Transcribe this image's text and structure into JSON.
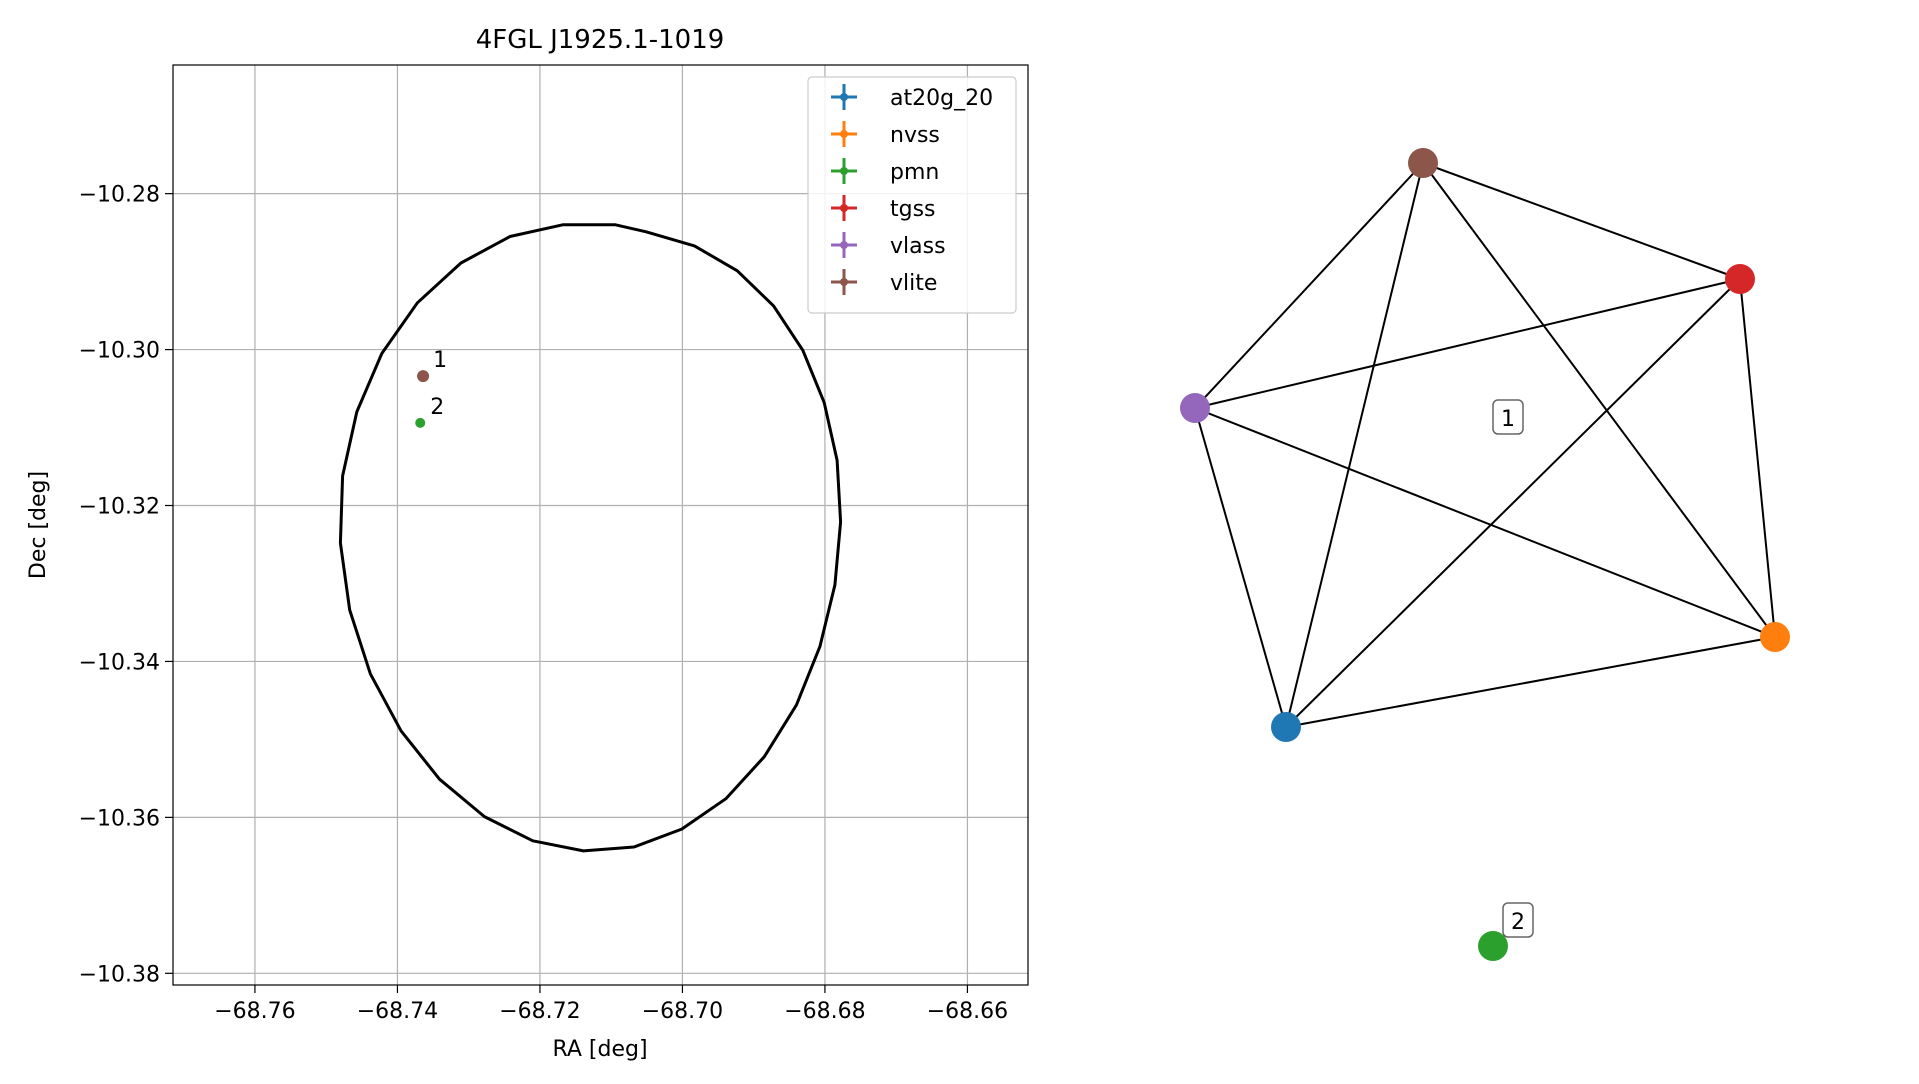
{
  "chart_data": [
    {
      "type": "scatter",
      "title": "4FGL J1925.1-1019",
      "xlabel": "RA [deg]",
      "ylabel": "Dec [deg]",
      "xlim": [
        -68.7715,
        -68.6515
      ],
      "ylim": [
        -10.3815,
        -10.2635
      ],
      "grid": true,
      "legend_position": "top-right",
      "xticks": [
        -68.76,
        -68.74,
        -68.72,
        -68.7,
        -68.68,
        -68.66
      ],
      "xtick_labels": [
        "−68.76",
        "−68.74",
        "−68.72",
        "−68.70",
        "−68.68",
        "−68.66"
      ],
      "yticks": [
        -10.28,
        -10.3,
        -10.32,
        -10.34,
        -10.36,
        -10.38
      ],
      "ytick_labels": [
        "−10.28",
        "−10.30",
        "−10.32",
        "−10.34",
        "−10.36",
        "−10.38"
      ],
      "series": [
        {
          "name": "at20g_20",
          "color": "#1f77b4",
          "points": []
        },
        {
          "name": "nvss",
          "color": "#ff7f0e",
          "points": []
        },
        {
          "name": "pmn",
          "color": "#2ca02c",
          "points": [
            {
              "x": -68.7368,
              "y": -10.3094,
              "label": "2"
            }
          ]
        },
        {
          "name": "tgss",
          "color": "#d62728",
          "points": []
        },
        {
          "name": "vlass",
          "color": "#9467bd",
          "points": []
        },
        {
          "name": "vlite",
          "color": "#8c564b",
          "points": [
            {
              "x": -68.7364,
              "y": -10.3034,
              "label": "1"
            }
          ]
        }
      ],
      "ellipse": {
        "color": "#000000",
        "points": [
          [
            -68.7051,
            -10.2849
          ],
          [
            -68.6983,
            -10.2867
          ],
          [
            -68.6923,
            -10.2899
          ],
          [
            -68.6872,
            -10.2944
          ],
          [
            -68.6831,
            -10.3001
          ],
          [
            -68.6801,
            -10.3068
          ],
          [
            -68.6783,
            -10.3142
          ],
          [
            -68.6778,
            -10.3221
          ],
          [
            -68.6786,
            -10.3302
          ],
          [
            -68.6807,
            -10.3381
          ],
          [
            -68.684,
            -10.3456
          ],
          [
            -68.6885,
            -10.3522
          ],
          [
            -68.6939,
            -10.3576
          ],
          [
            -68.7001,
            -10.3615
          ],
          [
            -68.7068,
            -10.3638
          ],
          [
            -68.7139,
            -10.3643
          ],
          [
            -68.721,
            -10.363
          ],
          [
            -68.7278,
            -10.3599
          ],
          [
            -68.7341,
            -10.3551
          ],
          [
            -68.7395,
            -10.3489
          ],
          [
            -68.7438,
            -10.3416
          ],
          [
            -68.7467,
            -10.3334
          ],
          [
            -68.748,
            -10.3248
          ],
          [
            -68.7477,
            -10.3162
          ],
          [
            -68.7457,
            -10.308
          ],
          [
            -68.7422,
            -10.3005
          ],
          [
            -68.7372,
            -10.294
          ],
          [
            -68.7311,
            -10.2889
          ],
          [
            -68.7242,
            -10.2855
          ],
          [
            -68.7168,
            -10.284
          ],
          [
            -68.7094,
            -10.284
          ]
        ]
      }
    },
    {
      "type": "network",
      "nodes": [
        {
          "id": "at20g_20",
          "color": "#1f77b4"
        },
        {
          "id": "nvss",
          "color": "#ff7f0e"
        },
        {
          "id": "pmn",
          "color": "#2ca02c"
        },
        {
          "id": "tgss",
          "color": "#d62728"
        },
        {
          "id": "vlass",
          "color": "#9467bd"
        },
        {
          "id": "vlite",
          "color": "#8c564b"
        }
      ],
      "edges": [
        [
          "vlite",
          "vlass"
        ],
        [
          "vlite",
          "at20g_20"
        ],
        [
          "vlite",
          "tgss"
        ],
        [
          "vlite",
          "nvss"
        ],
        [
          "tgss",
          "vlass"
        ],
        [
          "tgss",
          "at20g_20"
        ],
        [
          "tgss",
          "nvss"
        ],
        [
          "vlass",
          "at20g_20"
        ],
        [
          "vlass",
          "nvss"
        ],
        [
          "at20g_20",
          "nvss"
        ]
      ],
      "group_labels": [
        {
          "label": "1",
          "members": [
            "at20g_20",
            "nvss",
            "tgss",
            "vlass",
            "vlite"
          ]
        },
        {
          "label": "2",
          "members": [
            "pmn"
          ]
        }
      ]
    }
  ]
}
